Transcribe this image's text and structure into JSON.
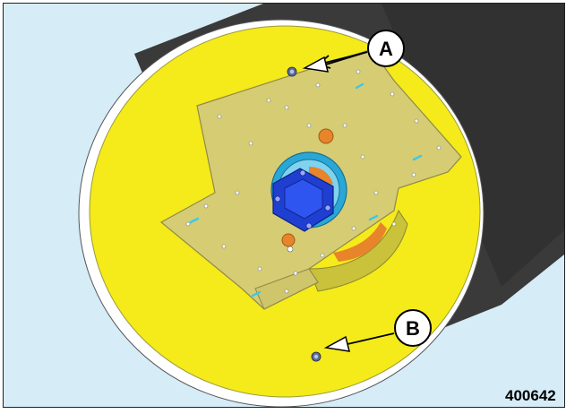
{
  "callouts": {
    "a": {
      "label": "A"
    },
    "b": {
      "label": "B"
    }
  },
  "figure_id": "400642",
  "colors": {
    "background": "#d6ecf7",
    "drum_dark": "#3a3a3a",
    "drum_face": "#f5ea1a",
    "plate": "#d6cc74",
    "hub_outer": "#29a8d8",
    "motor": "#1e3fd0",
    "orange_part": "#e8842a",
    "marker_cyan": "#3cc8e8"
  }
}
